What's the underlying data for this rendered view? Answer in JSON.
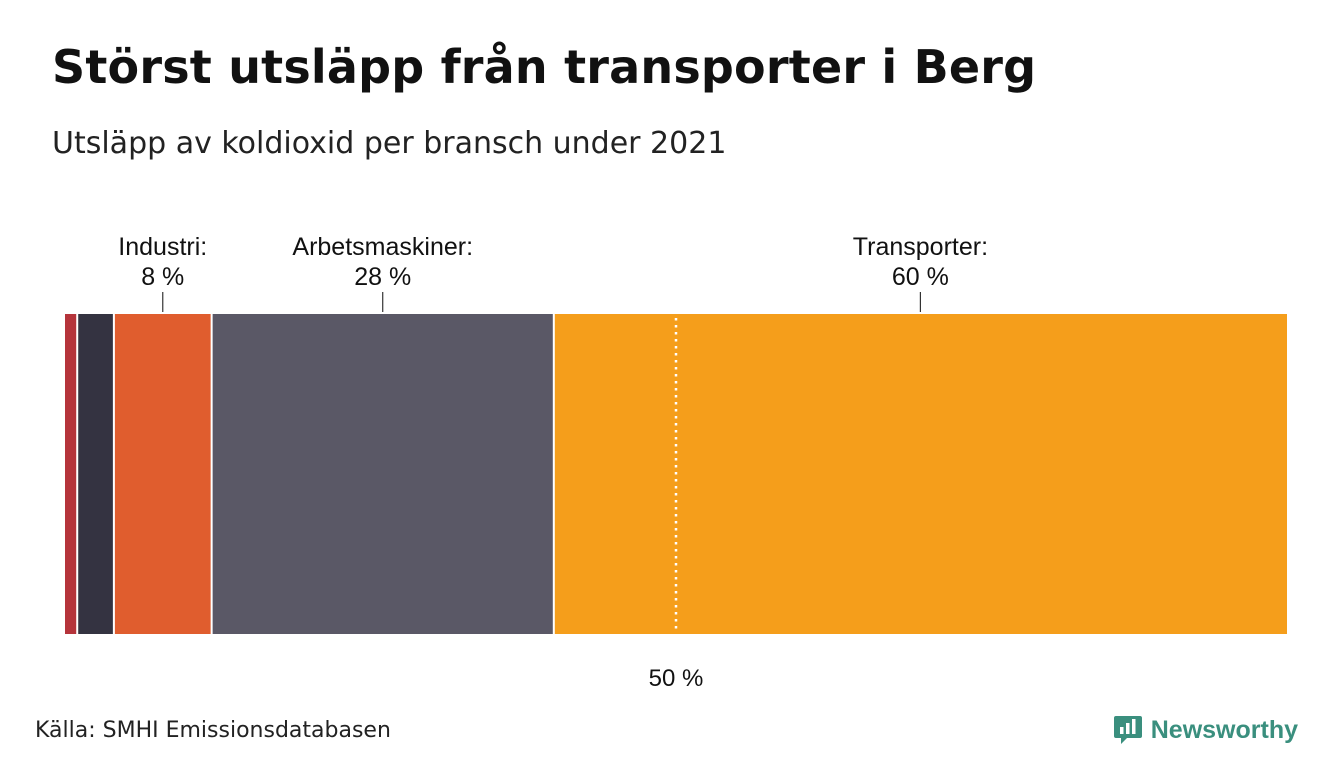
{
  "title": "Störst utsläpp från transporter i Berg",
  "subtitle": "Utsläpp av koldioxid per bransch under 2021",
  "source": "Källa: SMHI Emissionsdatabasen",
  "brand": "Newsworthy",
  "colors": {
    "brand": "#3a8f7e",
    "reference_line": "#ffffff"
  },
  "chart_data": {
    "type": "bar",
    "orientation": "horizontal-stacked-100",
    "unit": "%",
    "xlim": [
      0,
      100
    ],
    "segments": [
      {
        "label": "",
        "value": 1,
        "color": "#b5343b",
        "show_label": false
      },
      {
        "label": "",
        "value": 3,
        "color": "#343341",
        "show_label": false
      },
      {
        "label": "Industri:",
        "value": 8,
        "value_label": "8 %",
        "color": "#e05d2e",
        "show_label": true
      },
      {
        "label": "Arbetsmaskiner:",
        "value": 28,
        "value_label": "28 %",
        "color": "#5a5866",
        "show_label": true
      },
      {
        "label": "Transporter:",
        "value": 60,
        "value_label": "60 %",
        "color": "#f59e1b",
        "show_label": true
      }
    ],
    "reference_line": {
      "value": 50,
      "label": "50 %"
    }
  }
}
